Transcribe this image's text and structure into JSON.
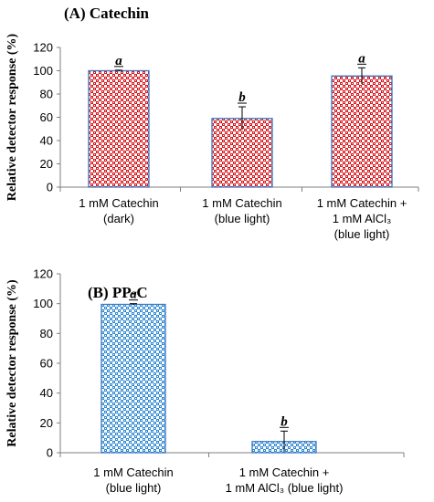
{
  "chart_data": [
    {
      "type": "bar",
      "title": "(A) Catechin",
      "ylabel": "Relative detector response (%)",
      "ylim": [
        0,
        120
      ],
      "yticks": [
        0,
        20,
        40,
        60,
        80,
        100,
        120
      ],
      "grid": false,
      "categories": [
        [
          "1 mM Catechin",
          "(dark)"
        ],
        [
          "1 mM Catechin",
          "(blue light)"
        ],
        [
          "1 mM Catechin +",
          "1 mM AlCl₃",
          "(blue light)"
        ]
      ],
      "values": [
        100,
        59,
        95.5
      ],
      "errors": [
        0.5,
        10,
        7
      ],
      "significance": [
        "a",
        "b",
        "a"
      ],
      "bar_pattern": "red-checker"
    },
    {
      "type": "bar",
      "title": "(B) PP-C",
      "ylabel": "Relative detector response (%)",
      "ylim": [
        0,
        120
      ],
      "yticks": [
        0,
        20,
        40,
        60,
        80,
        100,
        120
      ],
      "grid": false,
      "categories": [
        [
          "1 mM Catechin",
          "(blue light)"
        ],
        [
          "1 mM Catechin +",
          "1 mM AlCl₃  (blue light)"
        ]
      ],
      "values": [
        99.5,
        7.5
      ],
      "errors": [
        0.5,
        7
      ],
      "significance": [
        "a",
        "b"
      ],
      "bar_pattern": "blue-checker"
    }
  ],
  "colors": {
    "red_pattern": "#d6141a",
    "blue_pattern": "#2f89d1",
    "bar_outline": "#3a78c2",
    "axis": "#7f7f7f"
  }
}
